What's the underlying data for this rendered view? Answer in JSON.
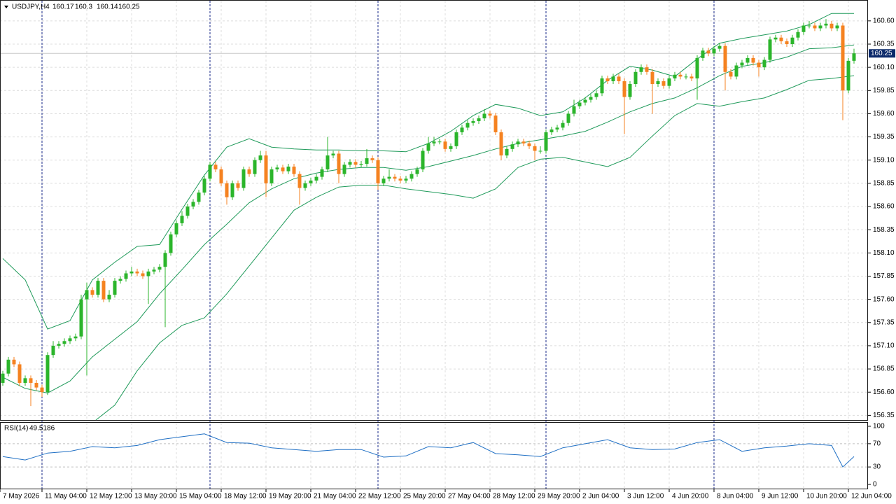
{
  "chart_data": [
    {
      "type": "candlestick",
      "symbol": "USDJPY,H4",
      "bull_color": "#2bb52b",
      "bear_color": "#f58220",
      "grid": true,
      "grid_color": "#dcdcdc",
      "separator_color": "#1a2a8a",
      "xlim": [
        -0.5,
        154.5
      ],
      "xticks": [
        {
          "value": -0.5,
          "label": "7 May 2026"
        },
        {
          "value": 7,
          "label": "11 May 04:00"
        },
        {
          "value": 15,
          "label": "12 May 12:00"
        },
        {
          "value": 23,
          "label": "13 May 20:00"
        },
        {
          "value": 31,
          "label": "15 May 04:00"
        },
        {
          "value": 39,
          "label": "18 May 12:00"
        },
        {
          "value": 47,
          "label": "19 May 20:00"
        },
        {
          "value": 55,
          "label": "21 May 04:00"
        },
        {
          "value": 63,
          "label": "22 May 12:00"
        },
        {
          "value": 71,
          "label": "25 May 20:00"
        },
        {
          "value": 79,
          "label": "27 May 04:00"
        },
        {
          "value": 87,
          "label": "28 May 12:00"
        },
        {
          "value": 95,
          "label": "29 May 20:00"
        },
        {
          "value": 103,
          "label": "2 Jun 04:00"
        },
        {
          "value": 111,
          "label": "3 Jun 12:00"
        },
        {
          "value": 119,
          "label": "4 Jun 20:00"
        },
        {
          "value": 127,
          "label": "8 Jun 04:00"
        },
        {
          "value": 135,
          "label": "9 Jun 12:00"
        },
        {
          "value": 143,
          "label": "10 Jun 20:00"
        },
        {
          "value": 151,
          "label": "12 Jun 04:00"
        }
      ],
      "separators": [
        7,
        37,
        67,
        97,
        127
      ],
      "ylim": [
        156.3,
        160.81
      ],
      "yticks": [
        156.35,
        {
          "value": 156.6,
          "label": "156.60"
        },
        156.85,
        {
          "value": 157.1,
          "label": "157.10"
        },
        157.35,
        {
          "value": 157.6,
          "label": "157.60"
        },
        157.85,
        {
          "value": 158.1,
          "label": "158.10"
        },
        158.35,
        {
          "value": 158.6,
          "label": "158.60"
        },
        158.85,
        {
          "value": 159.1,
          "label": "159.10"
        },
        159.35,
        {
          "value": 159.6,
          "label": "159.60"
        },
        159.85,
        {
          "value": 160.1,
          "label": "160.10"
        },
        160.35,
        {
          "value": 160.6,
          "label": "160.60"
        }
      ],
      "open": [
        156.7,
        156.8,
        156.95,
        156.9,
        156.7,
        156.75,
        156.7,
        156.65,
        156.6,
        157.0,
        157.1,
        157.12,
        157.15,
        157.18,
        157.2,
        157.6,
        157.7,
        157.65,
        157.8,
        157.6,
        157.65,
        157.8,
        157.82,
        157.88,
        157.9,
        157.88,
        157.85,
        157.9,
        157.92,
        157.95,
        158.1,
        158.3,
        158.42,
        158.5,
        158.6,
        158.65,
        158.75,
        158.9,
        159.05,
        159.0,
        158.85,
        158.7,
        158.85,
        158.8,
        159.0,
        158.95,
        159.1,
        159.15,
        158.85,
        159.0,
        159.02,
        158.98,
        159.03,
        158.95,
        158.8,
        158.85,
        158.88,
        158.92,
        159.0,
        159.15,
        159.17,
        158.95,
        159.05,
        159.08,
        159.05,
        159.06,
        159.12,
        159.1,
        158.85,
        158.9,
        158.92,
        158.9,
        158.88,
        158.9,
        158.95,
        159.0,
        159.2,
        159.28,
        159.3,
        159.3,
        159.22,
        159.25,
        159.4,
        159.45,
        159.5,
        159.52,
        159.55,
        159.6,
        159.58,
        159.4,
        159.15,
        159.22,
        159.27,
        159.3,
        159.28,
        159.25,
        159.2,
        159.2,
        159.4,
        159.43,
        159.45,
        159.5,
        159.6,
        159.68,
        159.72,
        159.75,
        159.78,
        159.82,
        159.98,
        159.95,
        160.0,
        159.95,
        159.78,
        159.92,
        160.05,
        160.1,
        160.05,
        159.92,
        159.95,
        159.9,
        159.98,
        160.02,
        160.0,
        160.0,
        159.98,
        160.2,
        160.28,
        160.25,
        160.3,
        160.33,
        160.05,
        160.0,
        160.12,
        160.15,
        160.2,
        160.15,
        160.1,
        160.18,
        160.4,
        160.42,
        160.38,
        160.35,
        160.42,
        160.48,
        160.55,
        160.55,
        160.52,
        160.55,
        160.57,
        160.52,
        160.55,
        159.85,
        160.17
      ],
      "high": [
        156.83,
        156.98,
        156.98,
        156.93,
        156.78,
        156.78,
        156.73,
        156.68,
        157.03,
        157.15,
        157.15,
        157.18,
        157.21,
        157.23,
        157.65,
        157.78,
        157.73,
        157.83,
        157.83,
        157.7,
        157.83,
        157.85,
        157.91,
        157.95,
        157.93,
        157.91,
        157.93,
        157.95,
        157.98,
        158.13,
        158.33,
        158.45,
        158.55,
        158.63,
        158.68,
        158.78,
        158.93,
        159.08,
        159.08,
        159.03,
        158.88,
        158.88,
        158.88,
        159.03,
        159.03,
        159.13,
        159.2,
        159.2,
        159.03,
        159.05,
        159.05,
        159.06,
        159.06,
        158.98,
        158.88,
        158.91,
        158.95,
        159.03,
        159.35,
        159.2,
        159.2,
        159.08,
        159.11,
        159.11,
        159.09,
        159.22,
        159.15,
        159.13,
        158.93,
        159.0,
        158.95,
        158.93,
        158.93,
        158.98,
        159.03,
        159.23,
        159.35,
        159.35,
        159.33,
        159.33,
        159.28,
        159.43,
        159.48,
        159.53,
        159.55,
        159.58,
        159.65,
        159.63,
        159.61,
        159.43,
        159.25,
        159.3,
        159.33,
        159.33,
        159.31,
        159.28,
        159.25,
        159.43,
        159.46,
        159.48,
        159.53,
        159.63,
        159.75,
        159.75,
        159.78,
        159.81,
        159.85,
        160.01,
        160.01,
        160.03,
        160.03,
        159.98,
        159.95,
        160.08,
        160.13,
        160.13,
        160.08,
        159.98,
        159.98,
        160.01,
        160.05,
        160.05,
        160.03,
        160.03,
        160.23,
        160.31,
        160.31,
        160.33,
        160.36,
        160.36,
        160.08,
        160.15,
        160.18,
        160.23,
        160.23,
        160.18,
        160.21,
        160.43,
        160.45,
        160.45,
        160.41,
        160.45,
        160.51,
        160.58,
        160.6,
        160.58,
        160.58,
        160.62,
        160.6,
        160.58,
        160.58,
        160.2,
        160.3
      ],
      "low": [
        156.67,
        156.77,
        156.87,
        156.67,
        156.67,
        156.45,
        156.62,
        156.55,
        156.57,
        156.97,
        157.07,
        157.09,
        157.12,
        157.15,
        157.17,
        156.78,
        157.62,
        157.62,
        157.57,
        157.57,
        157.62,
        157.77,
        157.79,
        157.85,
        157.85,
        157.82,
        157.55,
        157.87,
        157.89,
        157.3,
        158.07,
        158.27,
        158.39,
        158.47,
        158.57,
        158.62,
        158.72,
        158.87,
        158.97,
        158.82,
        158.62,
        158.67,
        158.77,
        158.77,
        158.92,
        158.92,
        159.07,
        158.7,
        158.82,
        158.97,
        158.95,
        158.95,
        158.92,
        158.62,
        158.77,
        158.82,
        158.85,
        158.89,
        158.97,
        159.12,
        158.85,
        158.92,
        159.02,
        159.02,
        159.02,
        159.03,
        159.07,
        158.78,
        158.82,
        158.87,
        158.87,
        158.85,
        158.85,
        158.87,
        158.92,
        158.97,
        159.17,
        159.25,
        159.27,
        159.19,
        159.19,
        159.22,
        159.37,
        159.42,
        159.47,
        159.49,
        159.52,
        159.55,
        159.37,
        159.1,
        159.12,
        159.19,
        159.24,
        159.25,
        159.22,
        159.1,
        159.17,
        159.17,
        159.37,
        159.4,
        159.42,
        159.47,
        159.57,
        159.65,
        159.69,
        159.72,
        159.75,
        159.79,
        159.92,
        159.92,
        159.92,
        159.38,
        159.75,
        159.89,
        160.02,
        160.02,
        159.6,
        159.89,
        159.87,
        159.87,
        159.95,
        159.97,
        159.97,
        159.95,
        159.75,
        160.17,
        160.22,
        160.22,
        160.27,
        159.85,
        159.97,
        159.97,
        160.09,
        160.12,
        160.12,
        160.0,
        160.07,
        160.15,
        160.37,
        160.35,
        160.32,
        160.32,
        160.39,
        160.45,
        160.52,
        160.49,
        160.49,
        160.52,
        160.49,
        160.49,
        159.53,
        159.82,
        160.14
      ],
      "close": [
        156.8,
        156.95,
        156.9,
        156.7,
        156.75,
        156.7,
        156.65,
        156.6,
        157.0,
        157.1,
        157.12,
        157.15,
        157.18,
        157.2,
        157.6,
        157.7,
        157.65,
        157.8,
        157.6,
        157.65,
        157.8,
        157.82,
        157.88,
        157.9,
        157.88,
        157.85,
        157.9,
        157.92,
        157.95,
        158.1,
        158.3,
        158.42,
        158.5,
        158.6,
        158.65,
        158.75,
        158.9,
        159.05,
        159.0,
        158.85,
        158.7,
        158.85,
        158.8,
        159.0,
        158.95,
        159.1,
        159.15,
        158.85,
        159.0,
        159.02,
        158.98,
        159.03,
        158.95,
        158.8,
        158.85,
        158.88,
        158.92,
        159.0,
        159.15,
        159.17,
        158.95,
        159.05,
        159.08,
        159.05,
        159.06,
        159.12,
        159.1,
        158.85,
        158.9,
        158.92,
        158.9,
        158.88,
        158.9,
        158.95,
        159.0,
        159.2,
        159.28,
        159.3,
        159.3,
        159.22,
        159.25,
        159.4,
        159.45,
        159.5,
        159.52,
        159.55,
        159.6,
        159.58,
        159.4,
        159.15,
        159.22,
        159.27,
        159.3,
        159.28,
        159.25,
        159.2,
        159.2,
        159.4,
        159.43,
        159.45,
        159.5,
        159.6,
        159.68,
        159.72,
        159.75,
        159.78,
        159.82,
        159.98,
        159.95,
        160.0,
        159.95,
        159.78,
        159.92,
        160.05,
        160.1,
        160.05,
        159.92,
        159.95,
        159.9,
        159.98,
        160.02,
        160.0,
        160.0,
        159.98,
        160.2,
        160.28,
        160.25,
        160.3,
        160.33,
        160.05,
        160.0,
        160.12,
        160.15,
        160.2,
        160.15,
        160.1,
        160.18,
        160.4,
        160.42,
        160.38,
        160.35,
        160.42,
        160.48,
        160.55,
        160.55,
        160.52,
        160.55,
        160.57,
        160.52,
        160.55,
        159.85,
        160.17,
        160.25
      ],
      "bands": [
        {
          "color": "#1f9a5a",
          "x": [
            0,
            4,
            8,
            12,
            16,
            20,
            24,
            28,
            32,
            36,
            40,
            44,
            48,
            52,
            56,
            60,
            64,
            68,
            72,
            76,
            80,
            84,
            88,
            92,
            96,
            100,
            104,
            108,
            112,
            116,
            120,
            124,
            128,
            132,
            136,
            140,
            144,
            148,
            152
          ],
          "values": [
            158.04,
            157.81,
            157.28,
            157.37,
            157.81,
            158.0,
            158.17,
            158.19,
            158.57,
            158.94,
            159.24,
            159.33,
            159.24,
            159.22,
            159.21,
            159.21,
            159.2,
            159.2,
            159.19,
            159.28,
            159.41,
            159.58,
            159.7,
            159.66,
            159.58,
            159.62,
            159.77,
            159.96,
            160.11,
            160.07,
            160.0,
            160.19,
            160.36,
            160.41,
            160.45,
            160.49,
            160.56,
            160.68,
            160.68
          ]
        },
        {
          "color": "#1f9a5a",
          "x": [
            0,
            4,
            8,
            12,
            16,
            20,
            24,
            28,
            32,
            36,
            40,
            44,
            48,
            52,
            56,
            60,
            64,
            68,
            72,
            76,
            80,
            84,
            88,
            92,
            96,
            100,
            104,
            108,
            112,
            116,
            120,
            124,
            128,
            132,
            136,
            140,
            144,
            148,
            152
          ],
          "values": [
            156.76,
            156.64,
            156.59,
            156.72,
            156.98,
            157.17,
            157.36,
            157.66,
            157.92,
            158.19,
            158.41,
            158.64,
            158.79,
            158.9,
            158.96,
            159.0,
            159.02,
            159.02,
            158.99,
            159.03,
            159.09,
            159.15,
            159.22,
            159.28,
            159.32,
            159.36,
            159.41,
            159.51,
            159.62,
            159.71,
            159.77,
            159.88,
            160.01,
            160.11,
            160.15,
            160.21,
            160.3,
            160.31,
            160.34
          ]
        },
        {
          "color": "#1f9a5a",
          "x": [
            0,
            4,
            8,
            12,
            16,
            20,
            24,
            28,
            32,
            36,
            40,
            44,
            48,
            52,
            56,
            60,
            64,
            68,
            72,
            76,
            80,
            84,
            88,
            92,
            96,
            100,
            104,
            108,
            112,
            116,
            120,
            124,
            128,
            132,
            136,
            140,
            144,
            148,
            152
          ],
          "values": [
            null,
            null,
            null,
            null,
            156.27,
            156.46,
            156.83,
            157.13,
            157.32,
            157.4,
            157.66,
            157.96,
            158.26,
            158.56,
            158.7,
            158.81,
            158.83,
            158.83,
            158.79,
            158.76,
            158.73,
            158.69,
            158.79,
            159.02,
            159.11,
            159.13,
            159.08,
            159.03,
            159.13,
            159.36,
            159.58,
            159.71,
            159.68,
            159.73,
            159.77,
            159.86,
            159.96,
            159.98,
            160.01
          ]
        }
      ],
      "price_line_color": "#c8c8c8",
      "price_label_color": "#0c2a6b"
    },
    {
      "type": "line",
      "label": "RSI(14)",
      "current": 49.5186,
      "ylim": [
        -7.2,
        107.2
      ],
      "yticks": [
        0,
        30,
        70,
        100
      ],
      "levels": [
        30,
        70
      ],
      "series": [
        {
          "color": "#1f6fc4",
          "x": [
            0,
            4,
            8,
            12,
            16,
            20,
            24,
            28,
            32,
            36,
            40,
            44,
            48,
            52,
            56,
            60,
            64,
            68,
            72,
            76,
            80,
            84,
            88,
            92,
            96,
            100,
            104,
            108,
            112,
            116,
            120,
            124,
            128,
            132,
            136,
            140,
            144,
            148,
            150,
            152
          ],
          "values": [
            48,
            42,
            54,
            57,
            65,
            63,
            67,
            77,
            82,
            87,
            72,
            71,
            63,
            60,
            57,
            60,
            60,
            47,
            49,
            65,
            63,
            72,
            53,
            51,
            48,
            63,
            70,
            77,
            63,
            60,
            61,
            72,
            77,
            57,
            63,
            66,
            70,
            67,
            30,
            48
          ]
        }
      ]
    }
  ]
}
